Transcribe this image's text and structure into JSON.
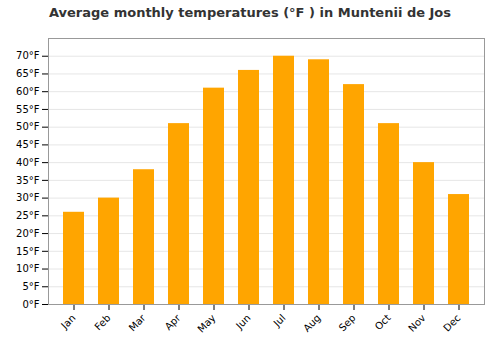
{
  "chart_data": {
    "type": "bar",
    "title": "Average monthly temperatures (°F ) in Muntenii de Jos",
    "categories": [
      "Jan",
      "Feb",
      "Mar",
      "Apr",
      "May",
      "Jun",
      "Jul",
      "Aug",
      "Sep",
      "Oct",
      "Nov",
      "Dec"
    ],
    "values": [
      26,
      30,
      38,
      51,
      61,
      66,
      70,
      69,
      62,
      51,
      40,
      31
    ],
    "color": "#FFA500",
    "ylim": [
      0,
      75
    ],
    "yticks": [
      {
        "value": 0,
        "label": "0°F"
      },
      {
        "value": 5,
        "label": "5°F"
      },
      {
        "value": 10,
        "label": "10°F"
      },
      {
        "value": 15,
        "label": "15°F"
      },
      {
        "value": 20,
        "label": "20°F"
      },
      {
        "value": 25,
        "label": "25°F"
      },
      {
        "value": 30,
        "label": "30°F"
      },
      {
        "value": 35,
        "label": "35°F"
      },
      {
        "value": 40,
        "label": "40°F"
      },
      {
        "value": 45,
        "label": "45°F"
      },
      {
        "value": 50,
        "label": "50°F"
      },
      {
        "value": 55,
        "label": "55°F"
      },
      {
        "value": 60,
        "label": "60°F"
      },
      {
        "value": 65,
        "label": "65°F"
      },
      {
        "value": 70,
        "label": "70°F"
      }
    ],
    "grid": true
  }
}
